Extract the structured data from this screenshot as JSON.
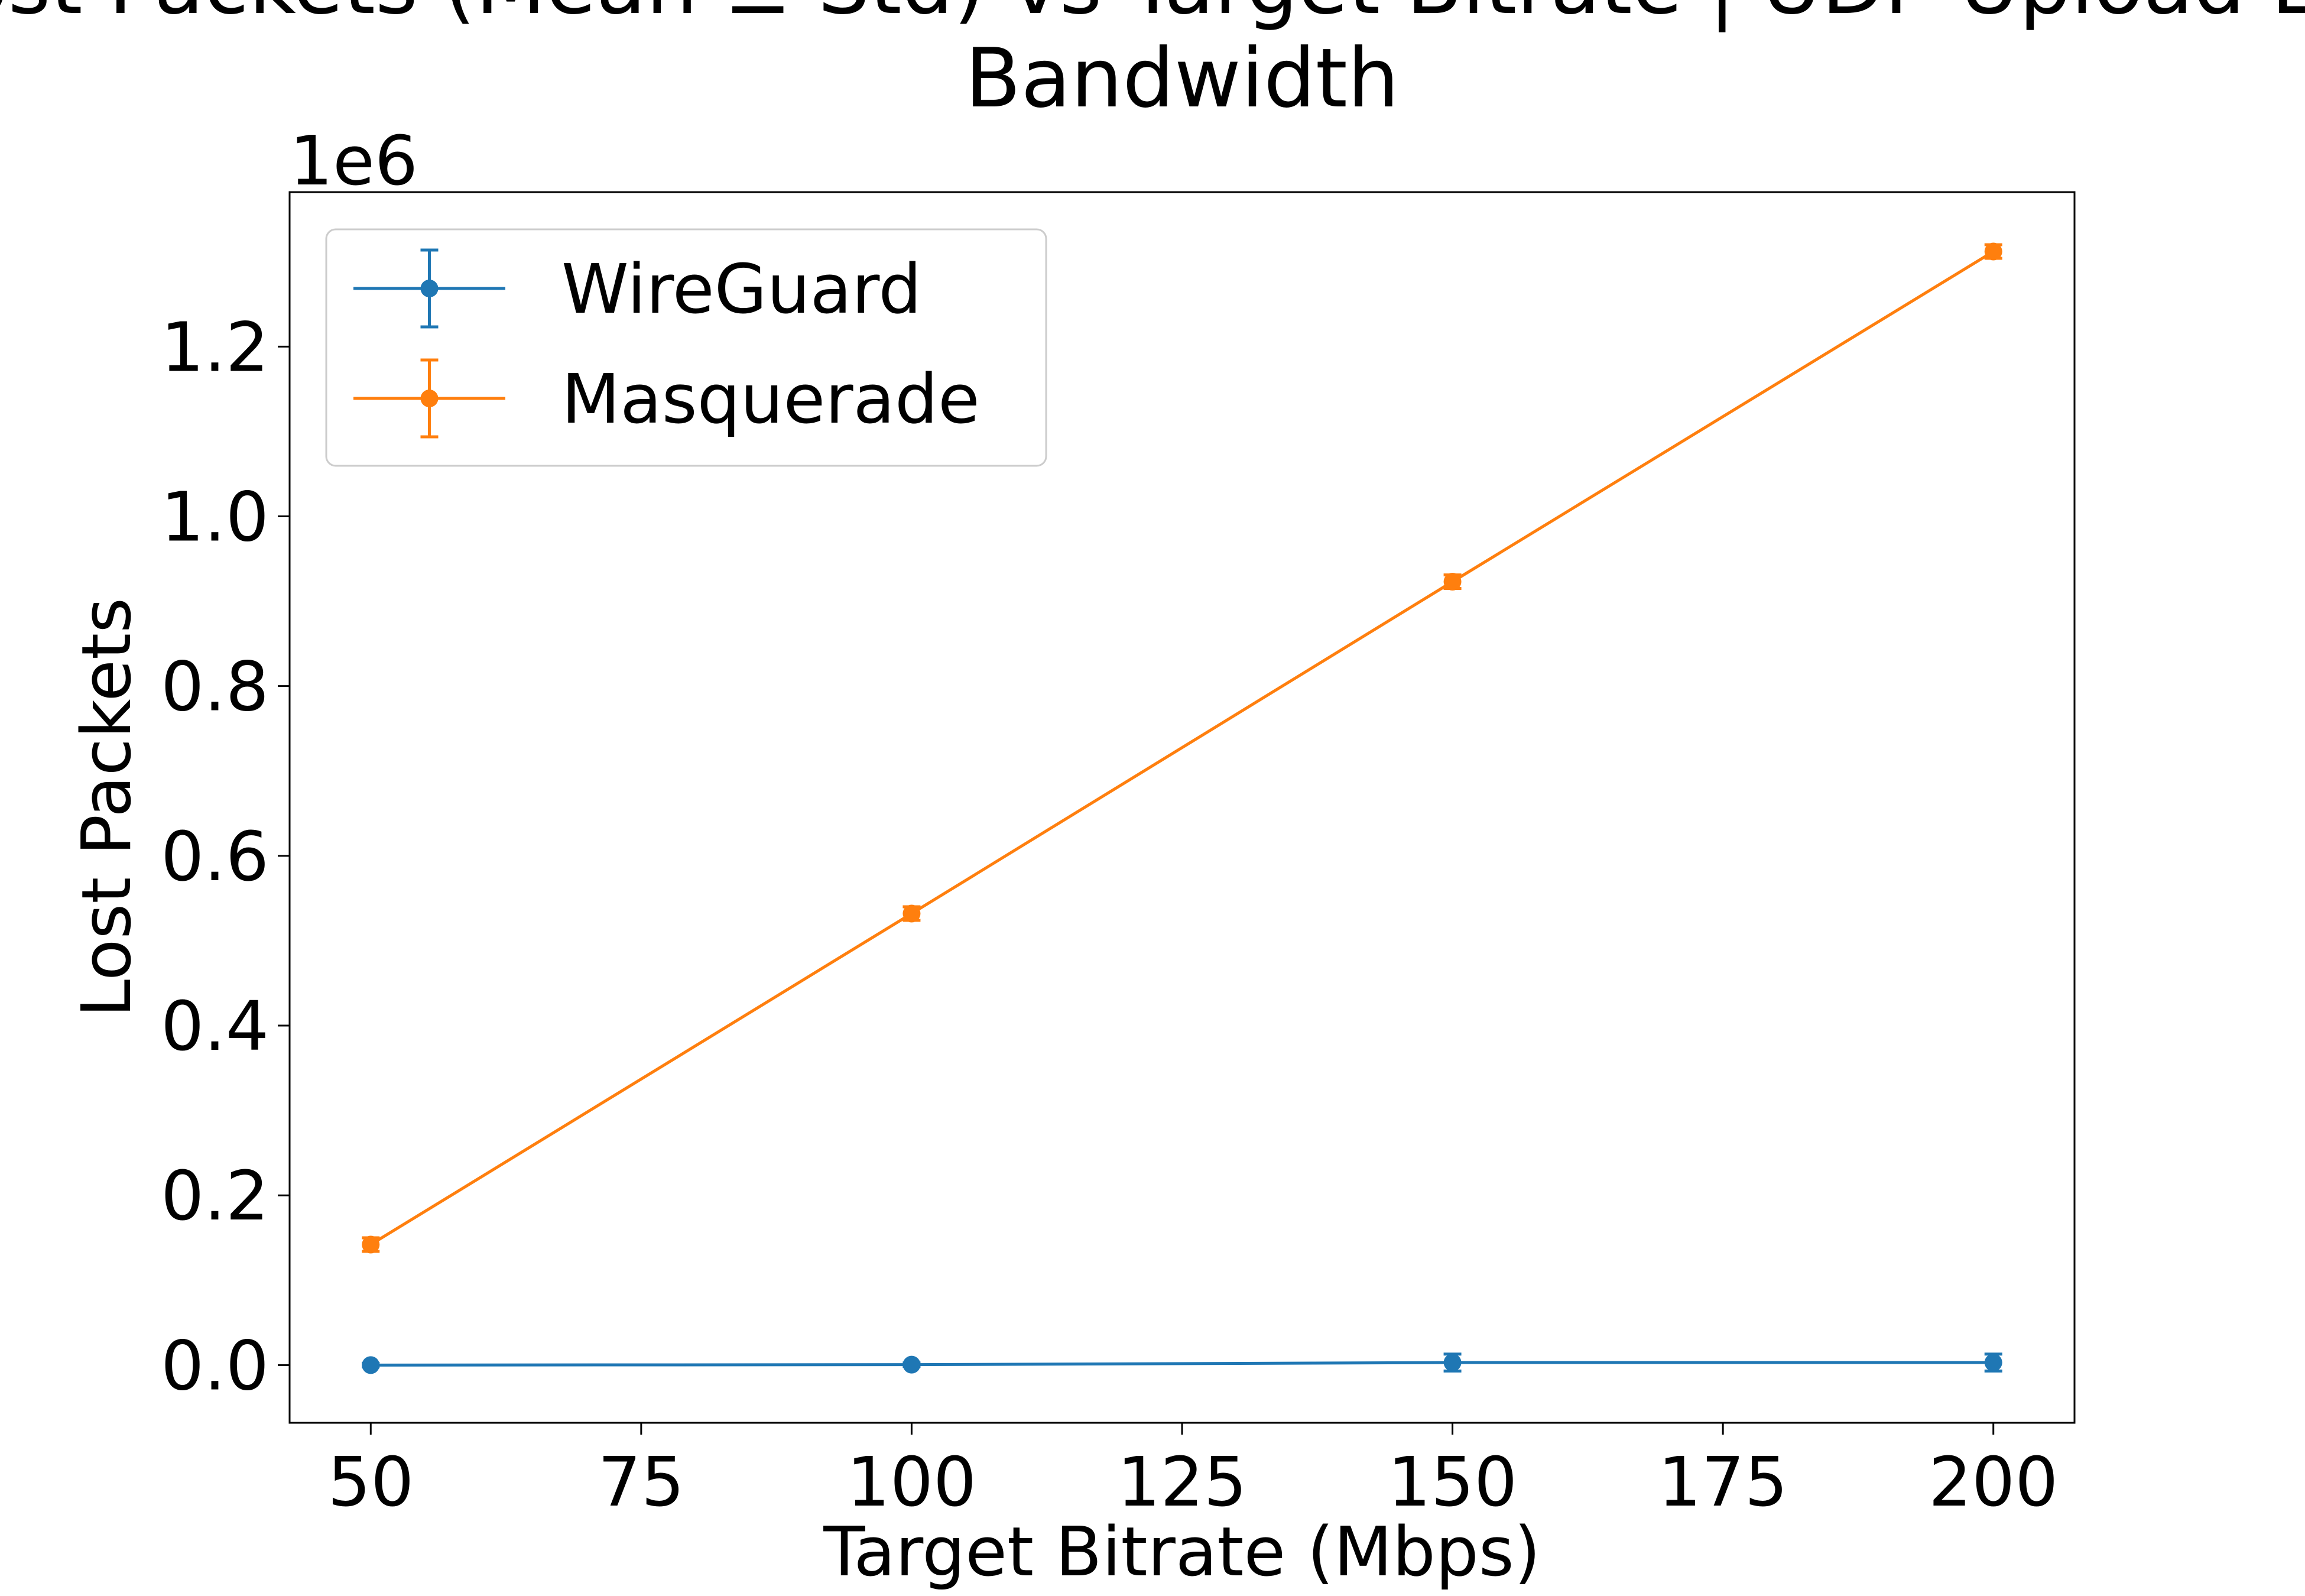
{
  "chart_data": {
    "type": "line",
    "title_lines": [
      "Lost Packets (Mean ± Std) vs Target Bitrate | UDP Upload Loss",
      "Bandwidth"
    ],
    "xlabel": "Target Bitrate (Mbps)",
    "ylabel": "Lost Packets",
    "y_offset_label": "1e6",
    "xlim": [
      42.5,
      207.5
    ],
    "ylim": [
      -0.068,
      1.382
    ],
    "xticks": [
      50,
      75,
      100,
      125,
      150,
      175,
      200
    ],
    "xtick_labels": [
      "50",
      "75",
      "100",
      "125",
      "150",
      "175",
      "200"
    ],
    "yticks": [
      0.0,
      0.2,
      0.4,
      0.6,
      0.8,
      1.0,
      1.2
    ],
    "ytick_labels": [
      "0.0",
      "0.2",
      "0.4",
      "0.6",
      "0.8",
      "1.0",
      "1.2"
    ],
    "x": [
      50,
      100,
      150,
      200
    ],
    "series": [
      {
        "name": "WireGuard",
        "color": "#1f77b4",
        "values": [
          0.0,
          0.0005,
          0.003,
          0.003
        ],
        "std": [
          0.002,
          0.002,
          0.01,
          0.01
        ]
      },
      {
        "name": "Masquerade",
        "color": "#ff7f0e",
        "values": [
          0.142,
          0.532,
          0.923,
          1.312
        ],
        "std": [
          0.008,
          0.008,
          0.008,
          0.008
        ]
      }
    ],
    "legend_position": "upper-left",
    "grid": false
  }
}
